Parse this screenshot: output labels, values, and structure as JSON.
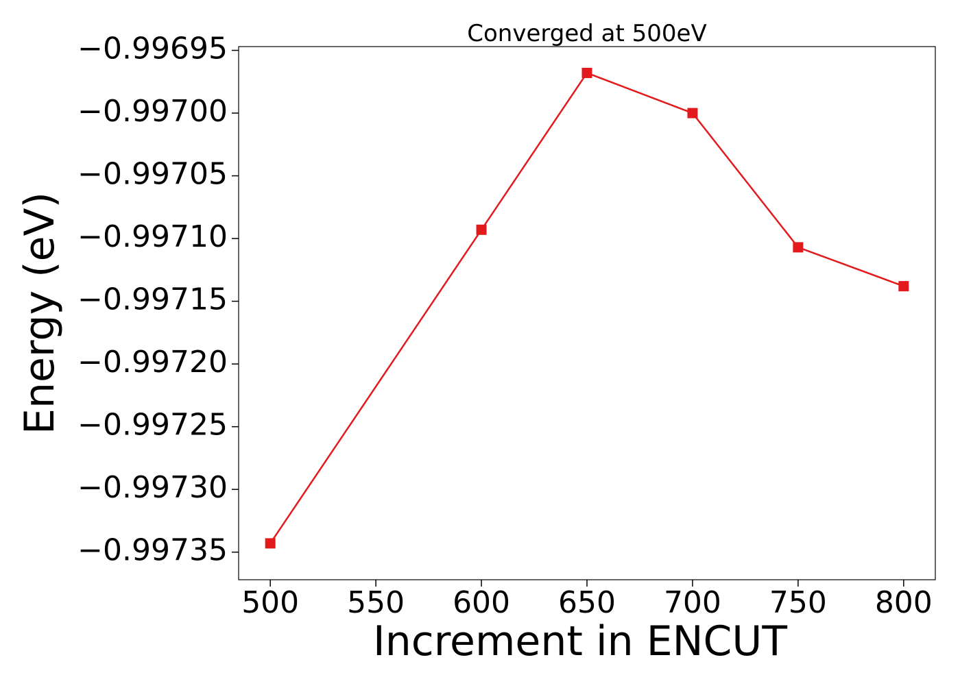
{
  "chart_data": {
    "type": "line",
    "title": "Converged at 500eV",
    "xlabel": "Increment in ENCUT",
    "ylabel": "Energy (eV)",
    "x": [
      500,
      600,
      650,
      700,
      750,
      800
    ],
    "series": [
      {
        "values": [
          -0.997343,
          -0.997093,
          -0.996968,
          -0.997,
          -0.997107,
          -0.997138
        ],
        "color": "#e31a1c",
        "marker": "square"
      }
    ],
    "xlim": [
      485,
      815
    ],
    "ylim": [
      -0.997372,
      -0.996947
    ],
    "xticks": [
      500,
      550,
      600,
      650,
      700,
      750,
      800
    ],
    "xtick_labels": [
      "500",
      "550",
      "600",
      "650",
      "700",
      "750",
      "800"
    ],
    "yticks": [
      -0.99735,
      -0.9973,
      -0.99725,
      -0.9972,
      -0.99715,
      -0.9971,
      -0.99705,
      -0.997,
      -0.99695
    ],
    "ytick_labels": [
      "−0.99735",
      "−0.99730",
      "−0.99725",
      "−0.99720",
      "−0.99715",
      "−0.99710",
      "−0.99705",
      "−0.99700",
      "−0.99695"
    ],
    "grid": false,
    "legend": "none"
  }
}
